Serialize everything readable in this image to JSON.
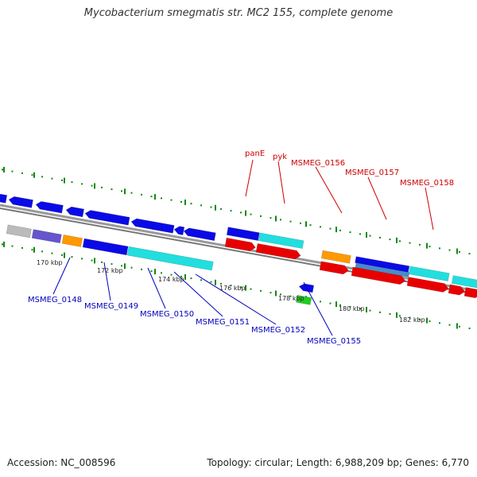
{
  "title": "Mycobacterium smegmatis str. MC2 155, complete genome",
  "footer": {
    "accession": "Accession: NC_008596",
    "summary": "Topology: circular; Length: 6,988,209 bp; Genes: 6,770"
  },
  "colors": {
    "blue": "#0a0ae6",
    "cyan": "#22dede",
    "red": "#e80000",
    "orange": "#ff9900",
    "green": "#22cc22",
    "purple": "#6655cc",
    "gray": "#bbbbbb",
    "steel": "#4a8ac8",
    "backbone": "#888888",
    "tick": "#118811",
    "gene_label_top": "#cc0000",
    "gene_label_bottom": "#0000bb"
  },
  "scale_labels": [
    {
      "text": "170 kbp"
    },
    {
      "text": "172 kbp"
    },
    {
      "text": "174 kbp"
    },
    {
      "text": "176 kbp"
    },
    {
      "text": "178 kbp"
    },
    {
      "text": "180 kbp"
    },
    {
      "text": "182 kbp"
    }
  ],
  "gene_labels_top": [
    "panE",
    "pyk",
    "MSMEG_0156",
    "MSMEG_0157",
    "MSMEG_0158"
  ],
  "gene_labels_bottom": [
    "MSMEG_0148",
    "MSMEG_0149",
    "MSMEG_0150",
    "MSMEG_0151",
    "MSMEG_0152",
    "MSMEG_0155"
  ]
}
